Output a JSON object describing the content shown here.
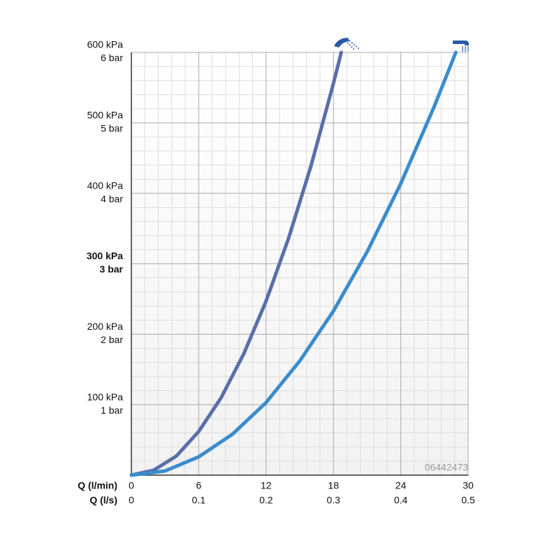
{
  "chart_data": {
    "type": "line",
    "x_label": "Q (l/min)",
    "x2_label": "Q (l/s)",
    "annotation": "06442473",
    "xlim": [
      0,
      30
    ],
    "xticks": [
      0,
      6,
      12,
      18,
      24,
      30
    ],
    "x2lim": [
      0,
      0.5
    ],
    "x2ticks": [
      0,
      0.1,
      0.2,
      0.3,
      0.4,
      0.5
    ],
    "ylim": [
      0,
      600
    ],
    "yticks": [
      {
        "value": 100,
        "label": "100 kPa"
      },
      {
        "value": 200,
        "label": "200 kPa"
      },
      {
        "value": 300,
        "label": "300 kPa"
      },
      {
        "value": 400,
        "label": "400 kPa"
      },
      {
        "value": 500,
        "label": "500 kPa"
      },
      {
        "value": 600,
        "label": "600 kPa"
      }
    ],
    "y2lim": [
      0,
      6
    ],
    "y2ticks": [
      {
        "value": 1,
        "label": "1 bar"
      },
      {
        "value": 2,
        "label": "2 bar"
      },
      {
        "value": 3,
        "label": "3 bar"
      },
      {
        "value": 4,
        "label": "4 bar"
      },
      {
        "value": 5,
        "label": "5 bar"
      },
      {
        "value": 6,
        "label": "6 bar"
      }
    ],
    "grid": true,
    "minor_grid": 5,
    "series": [
      {
        "color": "#5a6fa8",
        "x": [
          0,
          2,
          4,
          6,
          8,
          10,
          12,
          14,
          16,
          18,
          18.7
        ],
        "values": [
          0,
          7,
          27,
          62,
          110,
          172,
          247,
          336,
          439,
          556,
          600
        ]
      },
      {
        "color": "#3a8ccc",
        "x": [
          0,
          3,
          6,
          9,
          12,
          15,
          18,
          21,
          24,
          27,
          28.9
        ],
        "values": [
          0,
          6,
          26,
          58,
          103,
          162,
          233,
          317,
          414,
          524,
          600
        ]
      }
    ]
  }
}
